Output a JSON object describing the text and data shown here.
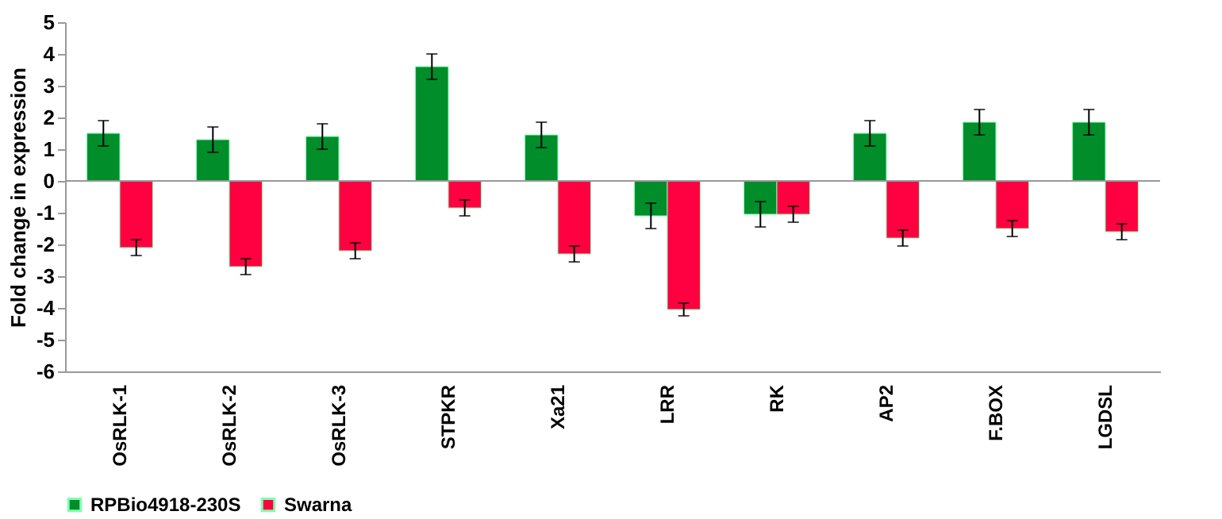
{
  "chart_data": {
    "type": "bar",
    "ylabel": "Fold change in expression",
    "categories": [
      "OsRLK-1",
      "OsRLK-2",
      "OsRLK-3",
      "STPKR",
      "Xa21",
      "LRR",
      "RK",
      "AP2",
      "F.BOX",
      "LGDSL"
    ],
    "series": [
      {
        "name": "RPBio4918-230S",
        "color": "#008d2a",
        "values": [
          1.5,
          1.3,
          1.4,
          3.6,
          1.45,
          -1.1,
          -1.05,
          1.5,
          1.85,
          1.85
        ],
        "errors": [
          0.4,
          0.4,
          0.4,
          0.4,
          0.4,
          0.4,
          0.4,
          0.4,
          0.4,
          0.4
        ]
      },
      {
        "name": "Swarna",
        "color": "#ff0040",
        "values": [
          -2.1,
          -2.7,
          -2.2,
          -0.85,
          -2.3,
          -4.05,
          -1.05,
          -1.8,
          -1.5,
          -1.6
        ],
        "errors": [
          0.25,
          0.25,
          0.25,
          0.25,
          0.25,
          0.2,
          0.25,
          0.25,
          0.25,
          0.25
        ]
      }
    ],
    "ylim": [
      -6,
      5
    ],
    "yticks": [
      -6,
      -5,
      -4,
      -3,
      -2,
      -1,
      0,
      1,
      2,
      3,
      4,
      5
    ],
    "grid": false,
    "ref_lines": [
      {
        "axis": "y",
        "value": 0,
        "color": "#999999"
      }
    ],
    "legend": "bottom"
  }
}
